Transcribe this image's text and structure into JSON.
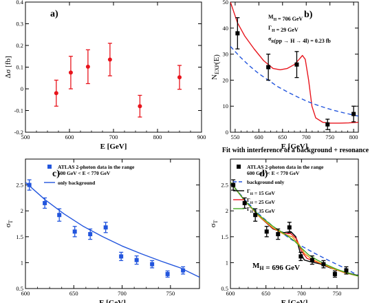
{
  "figure_caption": "Fit with interference of a background + resonance",
  "colors": {
    "red": "#e8141c",
    "blue": "#2255dd",
    "black": "#000000",
    "orange": "#f08a10",
    "green": "#44aa22"
  },
  "chart_data": [
    {
      "id": "a",
      "type": "scatter",
      "panel_label": "a)",
      "xlabel": "E  [GeV]",
      "ylabel": "Δσ  [fb]",
      "xlim": [
        500,
        900
      ],
      "ylim": [
        -0.2,
        0.4
      ],
      "xticks": [
        500,
        600,
        700,
        800,
        900
      ],
      "yticks": [
        -0.2,
        -0.1,
        0,
        0.1,
        0.2,
        0.3,
        0.4
      ],
      "grid": false,
      "series": [
        {
          "color": "#e8141c",
          "marker": "circle",
          "x": [
            570,
            603,
            642,
            692,
            760,
            850
          ],
          "y": [
            -0.02,
            0.075,
            0.102,
            0.135,
            -0.08,
            0.053
          ],
          "err": [
            0.06,
            0.075,
            0.078,
            0.075,
            0.05,
            0.055
          ]
        }
      ]
    },
    {
      "id": "b",
      "type": "line",
      "panel_label": "b)",
      "xlabel": "E  [GeV]",
      "ylabel": "N_EXP(E)",
      "xlim": [
        540,
        810
      ],
      "ylim": [
        0,
        50
      ],
      "xticks": [
        550,
        600,
        650,
        700,
        750,
        800
      ],
      "xticklabels": [
        "550",
        "600",
        "650",
        "700",
        "750",
        "800"
      ],
      "yticks": [
        0,
        10,
        20,
        30,
        40,
        50
      ],
      "grid": false,
      "annotations": [
        "M_H = 706 GeV",
        "Γ_H = 29 GeV",
        "σ_R(pp → H → 4l) = 0.23  fb"
      ],
      "data_points": {
        "color": "#000000",
        "marker": "square",
        "x": [
          555,
          620,
          680,
          745,
          800
        ],
        "y": [
          38,
          25,
          26,
          3,
          7
        ],
        "err": [
          6,
          5,
          5,
          2,
          3
        ]
      },
      "series": [
        {
          "style": "solid",
          "color": "#e8141c",
          "x": [
            540,
            555,
            570,
            590,
            610,
            630,
            645,
            660,
            675,
            685,
            692,
            698,
            705,
            712,
            720,
            735,
            750,
            770,
            790,
            810
          ],
          "y": [
            50,
            42,
            37,
            32,
            27.5,
            24.5,
            24,
            24.5,
            26,
            28,
            29.5,
            28,
            20,
            10,
            5.5,
            3.8,
            3.5,
            3.5,
            3.6,
            3.8
          ]
        },
        {
          "style": "dashed",
          "color": "#2255dd",
          "x": [
            540,
            560,
            580,
            600,
            620,
            640,
            660,
            680,
            700,
            720,
            740,
            760,
            780,
            800,
            810
          ],
          "y": [
            33,
            29,
            25.5,
            22.5,
            20,
            17.5,
            15.5,
            13.7,
            12,
            10.6,
            9.4,
            8.3,
            7.4,
            6.6,
            6.2
          ]
        }
      ]
    },
    {
      "id": "c",
      "type": "scatter",
      "panel_label": "c)",
      "xlabel": "E [GeV]",
      "ylabel": "σ_T",
      "xlim": [
        600,
        780
      ],
      "ylim": [
        0.5,
        3.0
      ],
      "xticks": [
        600,
        650,
        700,
        750
      ],
      "yticks": [
        0.5,
        1,
        1.5,
        2,
        2.5
      ],
      "grid": false,
      "legend": {
        "position": "top-right",
        "entries": [
          {
            "label": "ATLAS 2-photon data in the range",
            "label2": "600 GeV < E < 770 GeV",
            "style": "square",
            "color": "#2255dd"
          },
          {
            "label": "only background",
            "style": "solid",
            "color": "#2255dd"
          }
        ]
      },
      "data_points": {
        "color": "#2255dd",
        "marker": "square",
        "x": [
          604,
          620,
          635,
          651,
          667,
          683,
          699,
          715,
          731,
          747,
          763
        ],
        "y": [
          2.5,
          2.15,
          1.92,
          1.6,
          1.55,
          1.68,
          1.12,
          1.05,
          0.97,
          0.78,
          0.85
        ],
        "err": [
          0.1,
          0.1,
          0.12,
          0.1,
          0.1,
          0.1,
          0.08,
          0.08,
          0.07,
          0.06,
          0.07
        ]
      },
      "series": [
        {
          "style": "solid",
          "color": "#2255dd",
          "x": [
            600,
            620,
            640,
            660,
            680,
            700,
            720,
            740,
            760,
            780
          ],
          "y": [
            2.55,
            2.22,
            1.94,
            1.7,
            1.5,
            1.32,
            1.17,
            1.03,
            0.9,
            0.72
          ]
        }
      ]
    },
    {
      "id": "d",
      "type": "line",
      "panel_label": "d)",
      "xlabel": "E [GeV]",
      "ylabel": "σ_T",
      "xlim": [
        600,
        780
      ],
      "ylim": [
        0.5,
        3.0
      ],
      "xticks": [
        600,
        650,
        700,
        750
      ],
      "yticks": [
        0.5,
        1,
        1.5,
        2,
        2.5
      ],
      "grid": false,
      "annotation": "M_H = 696 GeV",
      "legend": {
        "position": "top-right",
        "entries": [
          {
            "label": "ATLAS 2-photon data in the range",
            "label2": "600 GeV < E < 770 GeV",
            "style": "square",
            "color": "#000000"
          },
          {
            "label": "background only",
            "style": "dashed",
            "color": "#2255dd"
          },
          {
            "label": "Γ_H = 15 GeV",
            "style": "solid",
            "color": "#000000"
          },
          {
            "label": "Γ_H = 25 GeV",
            "style": "solid",
            "color": "#e8141c"
          },
          {
            "label": "Γ_H = 35 GeV",
            "style": "solid",
            "color": "#44aa22"
          }
        ]
      },
      "data_points": {
        "color": "#000000",
        "marker": "square",
        "x": [
          604,
          620,
          635,
          651,
          667,
          683,
          699,
          715,
          731,
          747,
          763
        ],
        "y": [
          2.5,
          2.15,
          1.92,
          1.6,
          1.55,
          1.68,
          1.12,
          1.05,
          0.97,
          0.78,
          0.85
        ],
        "err": [
          0.1,
          0.1,
          0.12,
          0.1,
          0.1,
          0.1,
          0.08,
          0.08,
          0.07,
          0.06,
          0.07
        ]
      },
      "series": [
        {
          "style": "dashed",
          "color": "#2255dd",
          "x": [
            600,
            620,
            640,
            660,
            680,
            700,
            720,
            740,
            760,
            780
          ],
          "y": [
            2.55,
            2.22,
            1.94,
            1.7,
            1.5,
            1.32,
            1.17,
            1.03,
            0.9,
            0.75
          ]
        },
        {
          "style": "solid",
          "color": "#000000",
          "x": [
            600,
            620,
            640,
            660,
            675,
            685,
            692,
            698,
            704,
            712,
            725,
            740,
            760,
            780
          ],
          "y": [
            2.55,
            2.2,
            1.9,
            1.65,
            1.58,
            1.6,
            1.5,
            1.2,
            1.05,
            1.02,
            0.98,
            0.9,
            0.82,
            0.75
          ]
        },
        {
          "style": "solid",
          "color": "#e8141c",
          "x": [
            600,
            620,
            640,
            660,
            675,
            685,
            693,
            700,
            708,
            718,
            730,
            745,
            760,
            780
          ],
          "y": [
            2.55,
            2.2,
            1.9,
            1.66,
            1.56,
            1.56,
            1.46,
            1.22,
            1.08,
            1.03,
            0.97,
            0.88,
            0.81,
            0.74
          ]
        },
        {
          "style": "solid",
          "color": "#f08a10",
          "x": [
            600,
            620,
            640,
            660,
            675,
            687,
            696,
            704,
            714,
            728,
            745,
            760,
            780
          ],
          "y": [
            2.55,
            2.2,
            1.9,
            1.67,
            1.55,
            1.5,
            1.36,
            1.18,
            1.07,
            0.98,
            0.88,
            0.81,
            0.74
          ]
        },
        {
          "style": "solid",
          "color": "#44aa22",
          "x": [
            600,
            620,
            640,
            660,
            680,
            690,
            700,
            710,
            722,
            735,
            750,
            765,
            780
          ],
          "y": [
            2.55,
            2.2,
            1.92,
            1.7,
            1.52,
            1.42,
            1.28,
            1.15,
            1.05,
            0.96,
            0.87,
            0.8,
            0.74
          ]
        }
      ]
    }
  ]
}
